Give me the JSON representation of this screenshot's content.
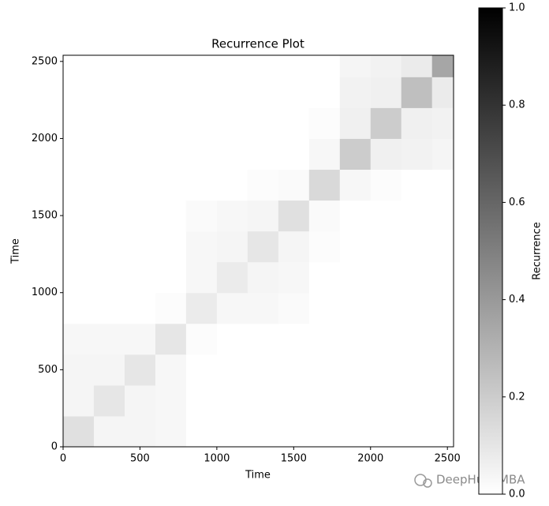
{
  "chart_data": {
    "type": "heatmap",
    "title": "Recurrence Plot",
    "xlabel": "Time",
    "ylabel": "Time",
    "bins": [
      0,
      200,
      400,
      600,
      800,
      1000,
      1200,
      1400,
      1600,
      1800,
      2000,
      2200,
      2400,
      2540
    ],
    "z": [
      [
        0.12,
        0.04,
        0.04,
        0.03,
        0,
        0,
        0,
        0,
        0,
        0,
        0,
        0,
        0
      ],
      [
        0.04,
        0.1,
        0.04,
        0.03,
        0,
        0,
        0,
        0,
        0,
        0,
        0,
        0,
        0
      ],
      [
        0.04,
        0.04,
        0.1,
        0.03,
        0,
        0,
        0,
        0,
        0,
        0,
        0,
        0,
        0
      ],
      [
        0.03,
        0.03,
        0.03,
        0.1,
        0.01,
        0,
        0,
        0,
        0,
        0,
        0,
        0,
        0
      ],
      [
        0,
        0,
        0,
        0.01,
        0.08,
        0.03,
        0.03,
        0.02,
        0,
        0,
        0,
        0,
        0
      ],
      [
        0,
        0,
        0,
        0,
        0.03,
        0.08,
        0.04,
        0.03,
        0,
        0,
        0,
        0,
        0
      ],
      [
        0,
        0,
        0,
        0,
        0.03,
        0.04,
        0.1,
        0.04,
        0.01,
        0,
        0,
        0,
        0
      ],
      [
        0,
        0,
        0,
        0,
        0.02,
        0.03,
        0.04,
        0.12,
        0.02,
        0,
        0,
        0,
        0
      ],
      [
        0,
        0,
        0,
        0,
        0,
        0,
        0.01,
        0.02,
        0.15,
        0.03,
        0.01,
        0,
        0
      ],
      [
        0,
        0,
        0,
        0,
        0,
        0,
        0,
        0,
        0.03,
        0.2,
        0.06,
        0.05,
        0.04
      ],
      [
        0,
        0,
        0,
        0,
        0,
        0,
        0,
        0,
        0.01,
        0.06,
        0.2,
        0.06,
        0.05
      ],
      [
        0,
        0,
        0,
        0,
        0,
        0,
        0,
        0,
        0,
        0.05,
        0.06,
        0.25,
        0.08
      ],
      [
        0,
        0,
        0,
        0,
        0,
        0,
        0,
        0,
        0,
        0.04,
        0.05,
        0.08,
        0.35
      ]
    ],
    "cmap": [
      "#ffffff",
      "#000000"
    ],
    "xlim": [
      0,
      2540
    ],
    "ylim": [
      0,
      2540
    ],
    "xticks": [
      0,
      500,
      1000,
      1500,
      2000,
      2500
    ],
    "yticks": [
      0,
      500,
      1000,
      1500,
      2000,
      2500
    ],
    "colorbar": {
      "label": "Recurrence",
      "lim": [
        0,
        1
      ],
      "ticks": [
        {
          "value": 0,
          "label": "0.0"
        },
        {
          "value": 0.2,
          "label": "0.2"
        },
        {
          "value": 0.4,
          "label": "0.4"
        },
        {
          "value": 0.6,
          "label": "0.6"
        },
        {
          "value": 0.8,
          "label": "0.8"
        },
        {
          "value": 1,
          "label": "1.0"
        }
      ]
    }
  },
  "watermark": "DeepHub IMBA"
}
